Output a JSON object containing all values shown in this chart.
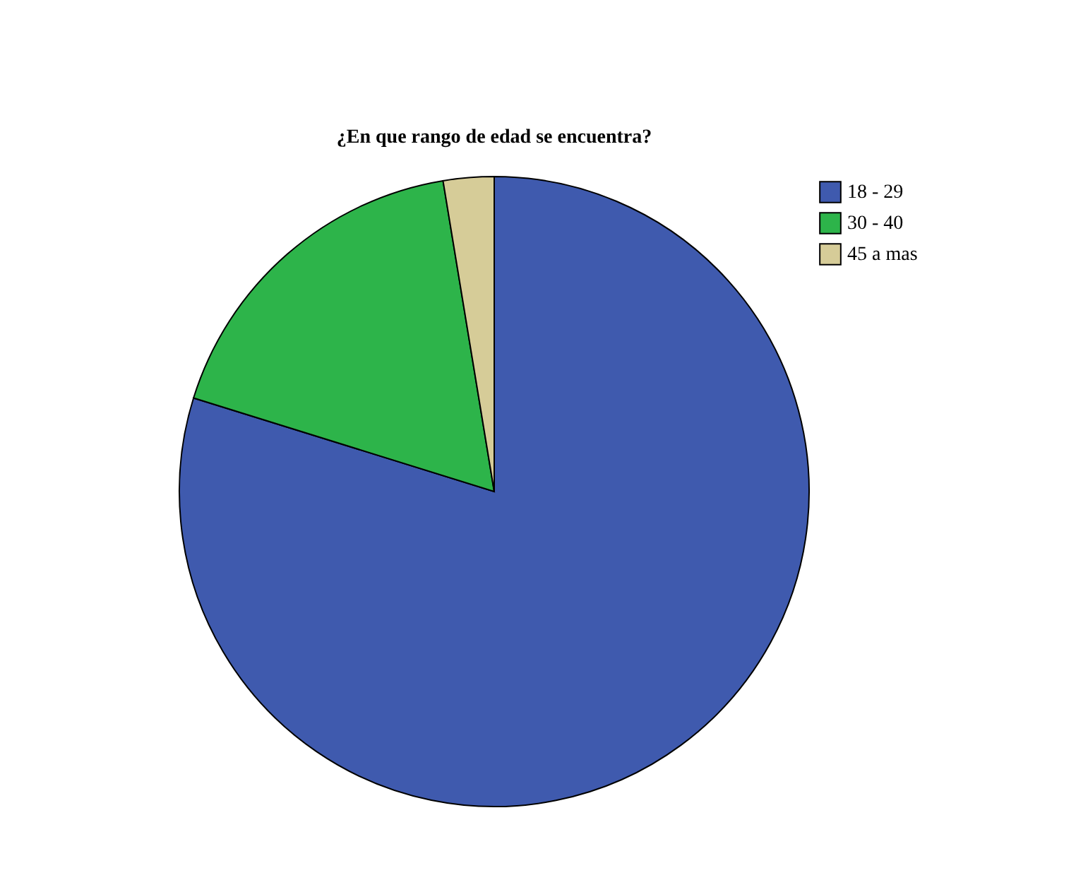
{
  "chart_data": {
    "type": "pie",
    "title": "¿En que rango de edad se encuentra?",
    "categories": [
      "18 - 29",
      "30 - 40",
      "45 a mas"
    ],
    "values": [
      79.8,
      17.6,
      2.6
    ],
    "colors": [
      "#3f5aae",
      "#2db44a",
      "#d6cc98"
    ],
    "legend": "top right"
  }
}
